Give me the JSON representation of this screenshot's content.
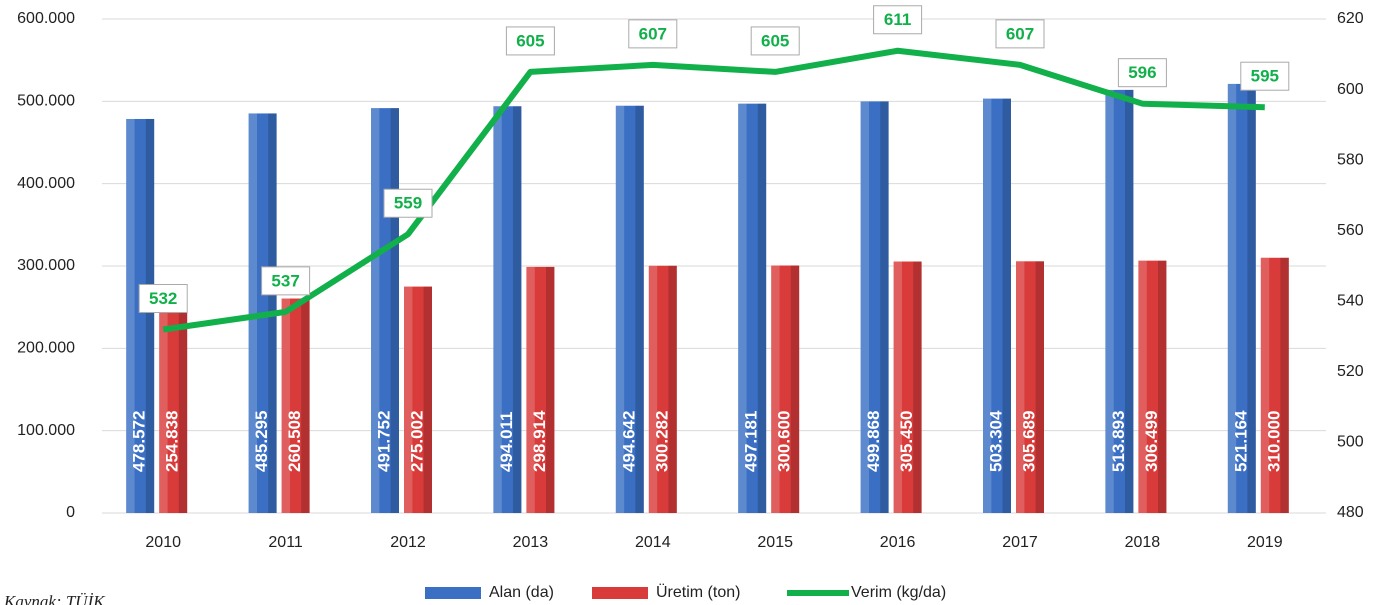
{
  "chart_data": {
    "type": "bar",
    "categories": [
      "2010",
      "2011",
      "2012",
      "2013",
      "2014",
      "2015",
      "2016",
      "2017",
      "2018",
      "2019"
    ],
    "series": [
      {
        "name": "Alan (da)",
        "color": "#3a6fc4",
        "type": "bar",
        "values": [
          478572,
          485295,
          491752,
          494011,
          494642,
          497181,
          499868,
          503304,
          513893,
          521164
        ],
        "value_labels": [
          "478.572",
          "485.295",
          "491.752",
          "494.011",
          "494.642",
          "497.181",
          "499.868",
          "503.304",
          "513.893",
          "521.164"
        ]
      },
      {
        "name": "Üretim (ton)",
        "color": "#d93b3b",
        "type": "bar",
        "values": [
          254838,
          260508,
          275002,
          298914,
          300282,
          300600,
          305450,
          305689,
          306499,
          310000
        ],
        "value_labels": [
          "254.838",
          "260.508",
          "275.002",
          "298.914",
          "300.282",
          "300.600",
          "305.450",
          "305.689",
          "306.499",
          "310.000"
        ]
      },
      {
        "name": "Verim (kg/da)",
        "color": "#12b04a",
        "type": "line",
        "axis": "y2",
        "values": [
          532,
          537,
          559,
          605,
          607,
          605,
          611,
          607,
          596,
          595
        ]
      }
    ],
    "ylim": [
      0,
      600000
    ],
    "yticks": [
      0,
      {
        "value": 100000,
        "label": "100.000"
      },
      {
        "value": 200000,
        "label": "200.000"
      },
      {
        "value": 300000,
        "label": "300.000"
      },
      {
        "value": 400000,
        "label": "400.000"
      },
      {
        "value": 500000,
        "label": "500.000"
      },
      {
        "value": 600000,
        "label": "600.000"
      }
    ],
    "y2lim": [
      480,
      620
    ],
    "y2ticks": [
      480,
      500,
      520,
      540,
      560,
      580,
      600,
      620
    ],
    "grid": true,
    "legend": "bottom",
    "source": "Kaynak: TÜİK"
  }
}
